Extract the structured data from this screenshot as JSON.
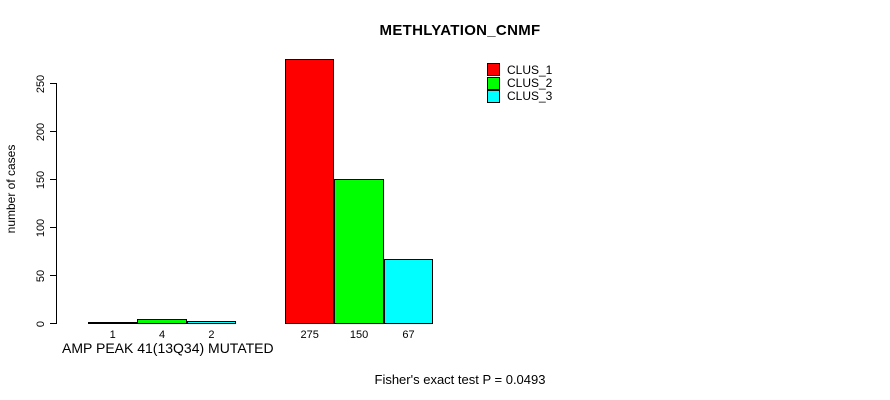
{
  "title": "METHLYATION_CNMF",
  "caption": "Fisher's exact test P = 0.0493",
  "chart_data": {
    "type": "bar",
    "title": "METHLYATION_CNMF",
    "ylabel": "number of cases",
    "xlabel": "",
    "yticks": [
      0,
      50,
      100,
      150,
      200,
      250
    ],
    "ylim": [
      0,
      290
    ],
    "grid": false,
    "legend_position": "top-right",
    "series": [
      {
        "name": "CLUS_1",
        "color": "#ff0000"
      },
      {
        "name": "CLUS_2",
        "color": "#00ff00"
      },
      {
        "name": "CLUS_3",
        "color": "#00ffff"
      }
    ],
    "groups": [
      {
        "label": "AMP PEAK 41(13Q34) MUTATED",
        "values": [
          1,
          4,
          2
        ],
        "bar_labels": [
          "1",
          "4",
          "2"
        ]
      },
      {
        "label": "",
        "values": [
          275,
          150,
          67
        ],
        "bar_labels": [
          "275",
          "150",
          "67"
        ]
      }
    ],
    "annotation": "Fisher's exact test P = 0.0493"
  }
}
